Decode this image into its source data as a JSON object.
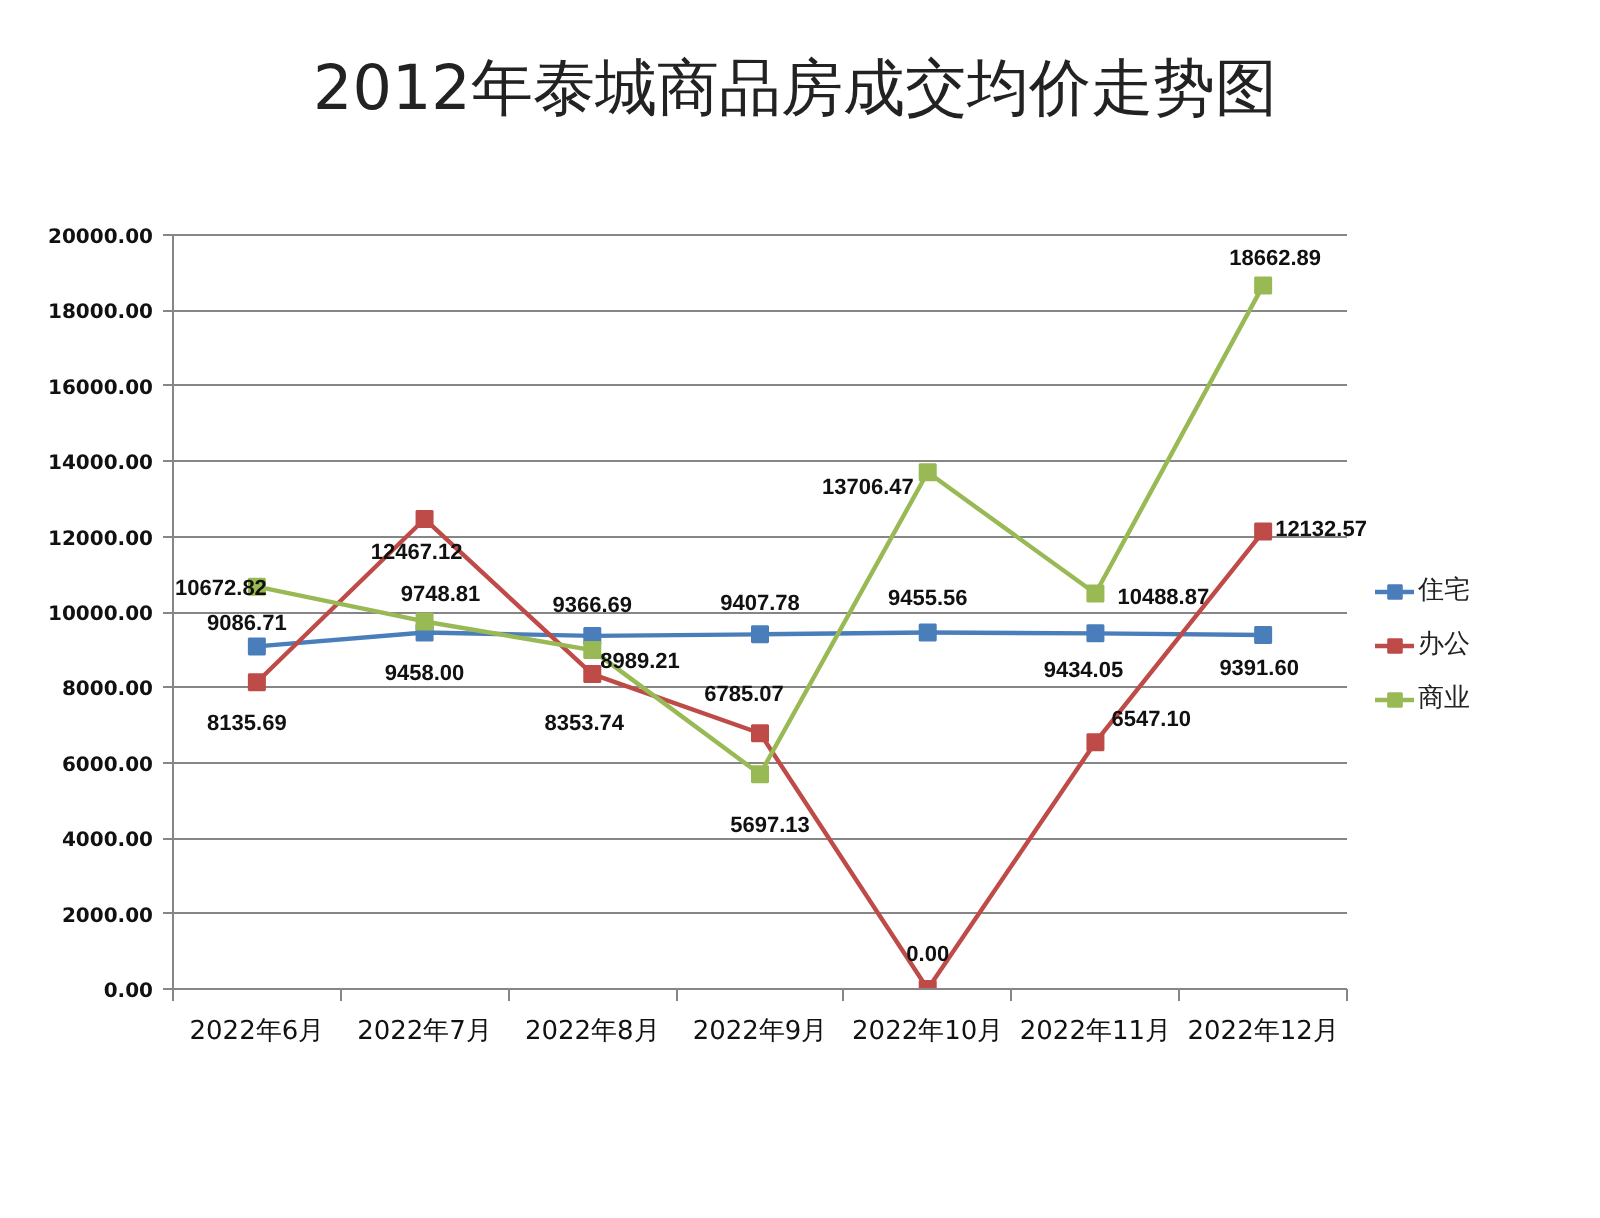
{
  "chart_data": {
    "type": "line",
    "title": "2012年泰城商品房成交均价走势图",
    "categories": [
      "2022年6月",
      "2022年7月",
      "2022年8月",
      "2022年9月",
      "2022年10月",
      "2022年11月",
      "2022年12月"
    ],
    "series": [
      {
        "name": "住宅",
        "color": "#4a7ebb",
        "values": [
          9086.71,
          9458.0,
          9366.69,
          9407.78,
          9455.56,
          9434.05,
          9391.6
        ],
        "value_labels": [
          "9086.71",
          "9458.00",
          "9366.69",
          "9407.78",
          "9455.56",
          "9434.05",
          "9391.60"
        ]
      },
      {
        "name": "办公",
        "color": "#be4b48",
        "values": [
          8135.69,
          12467.12,
          8353.74,
          6785.07,
          0.0,
          6547.1,
          12132.57
        ],
        "value_labels": [
          "8135.69",
          "12467.12",
          "8353.74",
          "6785.07",
          "0.00",
          "6547.10",
          "12132.57"
        ]
      },
      {
        "name": "商业",
        "color": "#98b954",
        "values": [
          10672.82,
          9748.81,
          8989.21,
          5697.13,
          13706.47,
          10488.87,
          18662.89
        ],
        "value_labels": [
          "10672.82",
          "9748.81",
          "8989.21",
          "5697.13",
          "13706.47",
          "10488.87",
          "18662.89"
        ]
      }
    ],
    "ylim": [
      0,
      20000
    ],
    "yticks": [
      {
        "value": 0,
        "label": "0.00"
      },
      {
        "value": 2000,
        "label": "2000.00"
      },
      {
        "value": 4000,
        "label": "4000.00"
      },
      {
        "value": 6000,
        "label": "6000.00"
      },
      {
        "value": 8000,
        "label": "8000.00"
      },
      {
        "value": 10000,
        "label": "10000.00"
      },
      {
        "value": 12000,
        "label": "12000.00"
      },
      {
        "value": 14000,
        "label": "14000.00"
      },
      {
        "value": 16000,
        "label": "16000.00"
      },
      {
        "value": 18000,
        "label": "18000.00"
      },
      {
        "value": 20000,
        "label": "20000.00"
      }
    ],
    "grid": "y",
    "legend": "right",
    "marker": "square",
    "line_style": "solid"
  }
}
